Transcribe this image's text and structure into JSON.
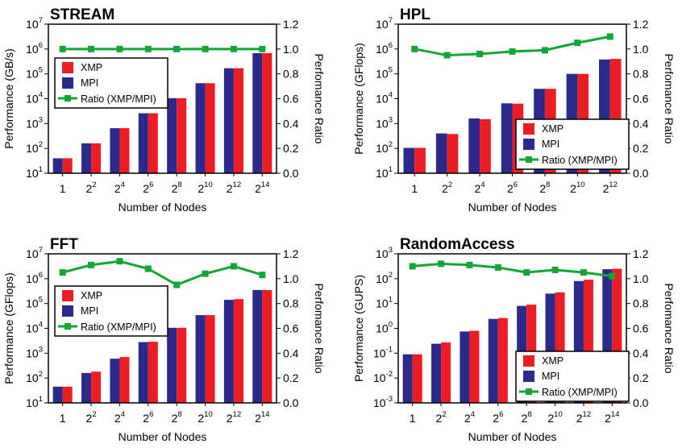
{
  "colors": {
    "xmp": "#ee1c25",
    "mpi": "#2b2a8c",
    "ratio": "#13a538"
  },
  "chart_data": [
    {
      "type": "bar",
      "title": "STREAM",
      "ylabel": "Performance (GB/s)",
      "ylabel2": "Perfomance Ratio",
      "xlabel": "Number of Nodes",
      "y_scale": "log",
      "ylim": [
        10,
        10000000
      ],
      "y2lim": [
        0,
        1.2
      ],
      "categories": [
        "1",
        "2^2",
        "2^4",
        "2^6",
        "2^8",
        "2^10",
        "2^12",
        "2^14"
      ],
      "legend_position": "left",
      "series": [
        {
          "name": "XMP",
          "values": [
            40,
            160,
            650,
            2600,
            10500,
            42000,
            168000,
            680000
          ]
        },
        {
          "name": "MPI",
          "values": [
            40,
            160,
            650,
            2600,
            10500,
            42000,
            168000,
            680000
          ]
        },
        {
          "name": "Ratio (XMP/MPI)",
          "axis": "right",
          "values": [
            1.0,
            1.0,
            1.0,
            1.0,
            1.0,
            1.0,
            1.0,
            1.0
          ]
        }
      ]
    },
    {
      "type": "bar",
      "title": "HPL",
      "ylabel": "Performance (GFlops)",
      "ylabel2": "Perfomance Ratio",
      "xlabel": "Number of Nodes",
      "y_scale": "log",
      "ylim": [
        10,
        10000000
      ],
      "y2lim": [
        0,
        1.2
      ],
      "categories": [
        "1",
        "2^2",
        "2^4",
        "2^6",
        "2^8",
        "2^10",
        "2^12"
      ],
      "legend_position": "bottom-right",
      "series": [
        {
          "name": "XMP",
          "values": [
            105,
            380,
            1500,
            6300,
            25000,
            100000,
            400000
          ]
        },
        {
          "name": "MPI",
          "values": [
            105,
            400,
            1600,
            6500,
            25000,
            100000,
            380000
          ]
        },
        {
          "name": "Ratio (XMP/MPI)",
          "axis": "right",
          "values": [
            1.0,
            0.95,
            0.96,
            0.98,
            0.99,
            1.05,
            1.1
          ]
        }
      ]
    },
    {
      "type": "bar",
      "title": "FFT",
      "ylabel": "Performance (GFlops)",
      "ylabel2": "Perfomance Ratio",
      "xlabel": "Number of Nodes",
      "y_scale": "log",
      "ylim": [
        10,
        10000000
      ],
      "y2lim": [
        0,
        1.2
      ],
      "categories": [
        "1",
        "2^2",
        "2^4",
        "2^6",
        "2^8",
        "2^10",
        "2^12",
        "2^14"
      ],
      "legend_position": "left",
      "series": [
        {
          "name": "XMP",
          "values": [
            45,
            180,
            700,
            2900,
            10500,
            34000,
            150000,
            350000
          ]
        },
        {
          "name": "MPI",
          "values": [
            45,
            160,
            600,
            2800,
            10500,
            34000,
            140000,
            350000
          ]
        },
        {
          "name": "Ratio (XMP/MPI)",
          "axis": "right",
          "values": [
            1.05,
            1.11,
            1.14,
            1.08,
            0.95,
            1.04,
            1.1,
            1.03
          ]
        }
      ]
    },
    {
      "type": "bar",
      "title": "RandomAccess",
      "ylabel": "Performance (GUPS)",
      "ylabel2": "Perfomance Ratio",
      "xlabel": "Number of Nodes",
      "y_scale": "log",
      "ylim": [
        0.001,
        1000
      ],
      "y2lim": [
        0,
        1.2
      ],
      "categories": [
        "1",
        "2^2",
        "2^4",
        "2^6",
        "2^8",
        "2^10",
        "2^12",
        "2^14"
      ],
      "legend_position": "bottom-right",
      "series": [
        {
          "name": "XMP",
          "values": [
            0.09,
            0.27,
            0.8,
            2.6,
            9,
            28,
            90,
            250
          ]
        },
        {
          "name": "MPI",
          "values": [
            0.09,
            0.24,
            0.75,
            2.4,
            8,
            25,
            80,
            240
          ]
        },
        {
          "name": "Ratio (XMP/MPI)",
          "axis": "right",
          "values": [
            1.1,
            1.12,
            1.11,
            1.09,
            1.05,
            1.07,
            1.05,
            1.02
          ]
        }
      ]
    }
  ]
}
